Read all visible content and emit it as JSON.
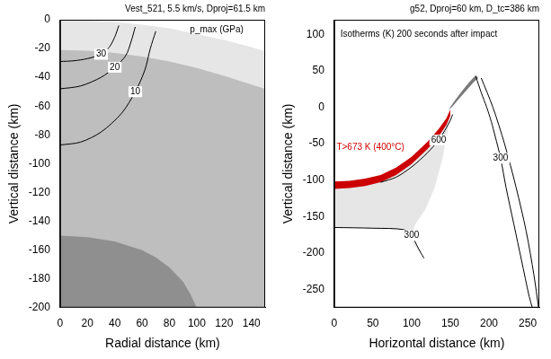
{
  "chart_data": [
    {
      "type": "contour",
      "title": "Vest_521, 5.5 km/s, Dproj=61.5 km",
      "xlabel": "Radial distance (km)",
      "ylabel": "Vertical distance (km)",
      "xlim": [
        0,
        150
      ],
      "xticks": [
        0,
        20,
        40,
        60,
        80,
        100,
        120,
        140
      ],
      "ylim": [
        -200,
        0
      ],
      "yticks": [
        -200,
        -180,
        -160,
        -140,
        -120,
        -100,
        -80,
        -60,
        -40,
        -20,
        0
      ],
      "grid": false,
      "annotations": [
        {
          "text": "p_max (GPa)",
          "x": 95,
          "y": -7,
          "color": "#000000"
        }
      ],
      "regions": [
        {
          "color": "#e6e6e6",
          "x": [
            0,
            20,
            40,
            60,
            80,
            100,
            120,
            140,
            150,
            150,
            0
          ],
          "y": [
            0,
            -0.5,
            -1.5,
            -3.5,
            -6,
            -10,
            -14,
            -19,
            -22,
            -200,
            -200
          ]
        },
        {
          "color": "#bebebe",
          "x": [
            0,
            20,
            40,
            60,
            80,
            100,
            120,
            140,
            150,
            150,
            0
          ],
          "y": [
            -21,
            -21.5,
            -23,
            -25.5,
            -29,
            -33.5,
            -39,
            -45,
            -48,
            -200,
            -200
          ]
        },
        {
          "color": "#8f8f8f",
          "x": [
            0,
            20,
            40,
            60,
            70,
            80,
            90,
            95,
            100,
            0
          ],
          "y": [
            -150,
            -151,
            -154,
            -160,
            -165,
            -172,
            -182,
            -190,
            -200,
            -200
          ]
        }
      ],
      "contours": [
        {
          "level": 30,
          "color": "#000000",
          "x": [
            0,
            10,
            20,
            30,
            36,
            40,
            43
          ],
          "y": [
            -29,
            -28.5,
            -27,
            -24,
            -19,
            -12,
            -4
          ]
        },
        {
          "level": 20,
          "color": "#000000",
          "x": [
            0,
            15,
            30,
            40,
            48,
            52,
            55
          ],
          "y": [
            -48,
            -46,
            -40,
            -33,
            -25,
            -15,
            -5
          ]
        },
        {
          "level": 10,
          "color": "#000000",
          "x": [
            0,
            15,
            30,
            45,
            55,
            62,
            66,
            70
          ],
          "y": [
            -87,
            -85,
            -78,
            -65,
            -50,
            -35,
            -20,
            -8
          ]
        }
      ]
    },
    {
      "type": "contour",
      "title": "g52, Dproj=60 km, D_tc=386 km",
      "xlabel": "Horizontal distance (km)",
      "ylabel": "Vertical distance (km)",
      "xlim": [
        0,
        265
      ],
      "xticks": [
        0,
        50,
        100,
        150,
        200,
        250
      ],
      "ylim": [
        -275,
        120
      ],
      "yticks": [
        -250,
        -200,
        -150,
        -100,
        -50,
        0,
        50,
        100
      ],
      "grid": false,
      "annotations": [
        {
          "text": "Isotherms (K) 200 seconds after impact",
          "x": 8,
          "y": 100,
          "color": "#000000"
        },
        {
          "text": "T>673 K (400°C)",
          "x": 3,
          "y": -55,
          "color": "#d00000"
        }
      ],
      "regions": [
        {
          "color": "#e6e6e6",
          "x": [
            0,
            20,
            40,
            60,
            80,
            100,
            120,
            135,
            145,
            150,
            147,
            140,
            130,
            118,
            105,
            100,
            107,
            112,
            116,
            90,
            50,
            0
          ],
          "y": [
            -102,
            -101,
            -98,
            -93,
            -83,
            -68,
            -48,
            -30,
            -15,
            -3,
            -30,
            -70,
            -110,
            -140,
            -160,
            -176,
            -190,
            -200,
            -207,
            -168,
            -166,
            -165
          ]
        },
        {
          "color": "#cc0000",
          "x": [
            0,
            20,
            40,
            60,
            80,
            100,
            120,
            135,
            145,
            150,
            150,
            145,
            135,
            120,
            100,
            80,
            60,
            40,
            20,
            0
          ],
          "y": [
            -102,
            -101,
            -98,
            -93,
            -83,
            -68,
            -48,
            -30,
            -15,
            -3,
            -12,
            -24,
            -40,
            -58,
            -78,
            -93,
            -103,
            -108,
            -111,
            -112
          ]
        },
        {
          "color": "#7a7a7a",
          "x": [
            148,
            155,
            165,
            175,
            183,
            186,
            180,
            170,
            160,
            152
          ],
          "y": [
            -3,
            8,
            22,
            35,
            44,
            40,
            34,
            22,
            10,
            0
          ]
        }
      ],
      "contours": [
        {
          "level": 600,
          "color": "#000000",
          "x": [
            60,
            80,
            100,
            120,
            135,
            145,
            150,
            153
          ],
          "y": [
            -103,
            -96,
            -82,
            -63,
            -45,
            -28,
            -18,
            -10
          ]
        },
        {
          "level": 300,
          "color": "#000000",
          "x": [
            0,
            50,
            90,
            100,
            107,
            112,
            116
          ],
          "y": [
            -165,
            -166,
            -168,
            -176,
            -190,
            -200,
            -207
          ]
        },
        {
          "level": 300,
          "color": "#000000",
          "x": [
            183,
            190,
            197,
            203,
            208,
            215,
            222,
            232,
            242,
            252,
            256
          ],
          "y": [
            42,
            20,
            0,
            -20,
            -40,
            -70,
            -110,
            -160,
            -210,
            -260,
            -275
          ]
        },
        {
          "color": "#000000",
          "x": [
            190,
            205,
            220,
            235,
            248,
            258,
            264
          ],
          "y": [
            40,
            0,
            -50,
            -110,
            -170,
            -230,
            -275
          ]
        }
      ]
    }
  ]
}
